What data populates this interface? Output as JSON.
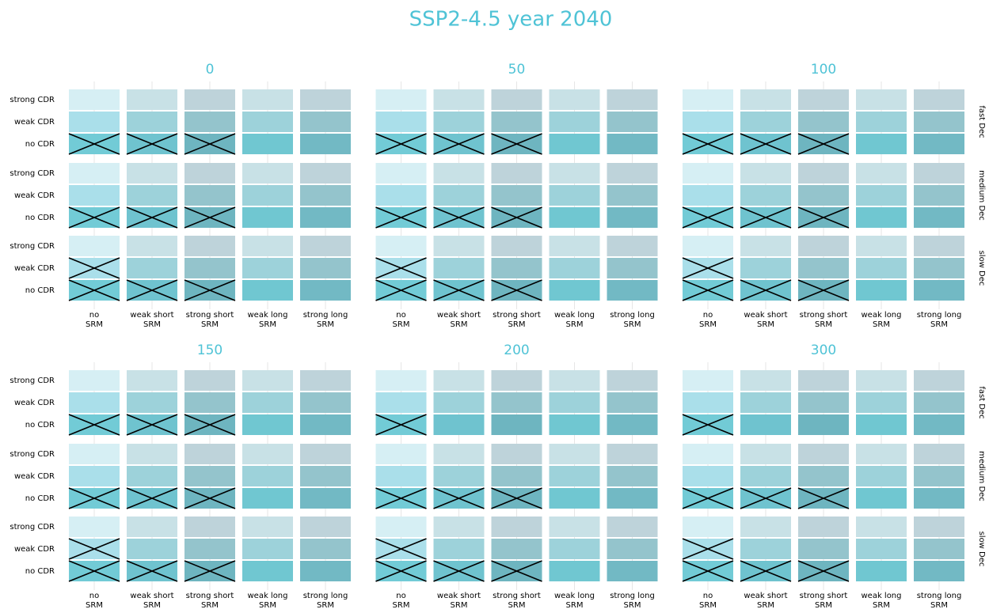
{
  "title": "SSP2-4.5 year 2040",
  "row_labels": [
    "strong CDR",
    "weak CDR",
    "no CDR"
  ],
  "col_labels": [
    [
      "no",
      "SRM"
    ],
    [
      "weak short",
      "SRM"
    ],
    [
      "strong short",
      "SRM"
    ],
    [
      "weak long",
      "SRM"
    ],
    [
      "strong long",
      "SRM"
    ]
  ],
  "group_labels": [
    "fast Dec",
    "medium Dec",
    "slow Dec"
  ],
  "colors": [
    [
      "#d6eff4",
      "#c8e1e6",
      "#bed3da",
      "#c8e1e6",
      "#bed3da"
    ],
    [
      "#aadfea",
      "#9dd2da",
      "#94c4cc",
      "#9dd2da",
      "#94c4cc"
    ],
    [
      "#72cbd6",
      "#6fc3cf",
      "#6eb5c0",
      "#70c7d1",
      "#72b9c4"
    ]
  ],
  "panels": [
    {
      "title": "0",
      "crossed": [
        [
          [
            0,
            0,
            0,
            0,
            0
          ],
          [
            0,
            0,
            0,
            0,
            0
          ],
          [
            1,
            1,
            1,
            0,
            0
          ]
        ],
        [
          [
            0,
            0,
            0,
            0,
            0
          ],
          [
            0,
            0,
            0,
            0,
            0
          ],
          [
            1,
            1,
            1,
            0,
            0
          ]
        ],
        [
          [
            0,
            0,
            0,
            0,
            0
          ],
          [
            1,
            0,
            0,
            0,
            0
          ],
          [
            1,
            1,
            1,
            0,
            0
          ]
        ]
      ]
    },
    {
      "title": "50",
      "crossed": [
        [
          [
            0,
            0,
            0,
            0,
            0
          ],
          [
            0,
            0,
            0,
            0,
            0
          ],
          [
            1,
            1,
            1,
            0,
            0
          ]
        ],
        [
          [
            0,
            0,
            0,
            0,
            0
          ],
          [
            0,
            0,
            0,
            0,
            0
          ],
          [
            1,
            1,
            1,
            0,
            0
          ]
        ],
        [
          [
            0,
            0,
            0,
            0,
            0
          ],
          [
            1,
            0,
            0,
            0,
            0
          ],
          [
            1,
            1,
            1,
            0,
            0
          ]
        ]
      ]
    },
    {
      "title": "100",
      "crossed": [
        [
          [
            0,
            0,
            0,
            0,
            0
          ],
          [
            0,
            0,
            0,
            0,
            0
          ],
          [
            1,
            1,
            1,
            0,
            0
          ]
        ],
        [
          [
            0,
            0,
            0,
            0,
            0
          ],
          [
            0,
            0,
            0,
            0,
            0
          ],
          [
            1,
            1,
            1,
            0,
            0
          ]
        ],
        [
          [
            0,
            0,
            0,
            0,
            0
          ],
          [
            1,
            0,
            0,
            0,
            0
          ],
          [
            1,
            1,
            1,
            0,
            0
          ]
        ]
      ]
    },
    {
      "title": "150",
      "crossed": [
        [
          [
            0,
            0,
            0,
            0,
            0
          ],
          [
            0,
            0,
            0,
            0,
            0
          ],
          [
            1,
            1,
            1,
            0,
            0
          ]
        ],
        [
          [
            0,
            0,
            0,
            0,
            0
          ],
          [
            0,
            0,
            0,
            0,
            0
          ],
          [
            1,
            1,
            1,
            0,
            0
          ]
        ],
        [
          [
            0,
            0,
            0,
            0,
            0
          ],
          [
            1,
            0,
            0,
            0,
            0
          ],
          [
            1,
            1,
            1,
            0,
            0
          ]
        ]
      ]
    },
    {
      "title": "200",
      "crossed": [
        [
          [
            0,
            0,
            0,
            0,
            0
          ],
          [
            0,
            0,
            0,
            0,
            0
          ],
          [
            1,
            0,
            0,
            0,
            0
          ]
        ],
        [
          [
            0,
            0,
            0,
            0,
            0
          ],
          [
            0,
            0,
            0,
            0,
            0
          ],
          [
            1,
            1,
            1,
            0,
            0
          ]
        ],
        [
          [
            0,
            0,
            0,
            0,
            0
          ],
          [
            1,
            0,
            0,
            0,
            0
          ],
          [
            1,
            1,
            1,
            0,
            0
          ]
        ]
      ]
    },
    {
      "title": "300",
      "crossed": [
        [
          [
            0,
            0,
            0,
            0,
            0
          ],
          [
            0,
            0,
            0,
            0,
            0
          ],
          [
            1,
            0,
            0,
            0,
            0
          ]
        ],
        [
          [
            0,
            0,
            0,
            0,
            0
          ],
          [
            0,
            0,
            0,
            0,
            0
          ],
          [
            1,
            1,
            1,
            0,
            0
          ]
        ],
        [
          [
            0,
            0,
            0,
            0,
            0
          ],
          [
            1,
            0,
            0,
            0,
            0
          ],
          [
            1,
            1,
            1,
            0,
            0
          ]
        ]
      ]
    }
  ]
}
